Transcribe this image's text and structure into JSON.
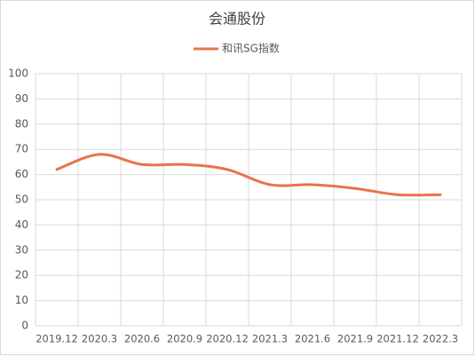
{
  "chart_data": {
    "type": "line",
    "title": "会通股份",
    "categories": [
      "2019.12",
      "2020.3",
      "2020.6",
      "2020.9",
      "2020.12",
      "2021.3",
      "2021.6",
      "2021.9",
      "2021.12",
      "2022.3"
    ],
    "series": [
      {
        "name": "和讯SG指数",
        "color": "#e8734a",
        "values": [
          62,
          68,
          64,
          64,
          62,
          56,
          56,
          54.5,
          52,
          52
        ]
      }
    ],
    "ylim": [
      0,
      100
    ],
    "yticks": [
      0,
      10,
      20,
      30,
      40,
      50,
      60,
      70,
      80,
      90,
      100
    ],
    "grid": true,
    "smooth": true,
    "legend": "top"
  }
}
